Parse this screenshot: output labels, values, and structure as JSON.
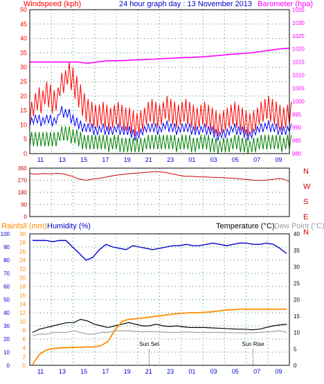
{
  "colors": {
    "wind": "#ff0000",
    "gust": "#0000ff",
    "avg": "#008000",
    "baro": "#ff00ff",
    "dir": "#cc0000",
    "rain": "#ff8c00",
    "humidity": "#0000cc",
    "temp": "#000000",
    "dew": "#a0a0a0",
    "title": "#0000cc",
    "grid": "#2e8b57"
  },
  "header": {
    "windspeed_label": "Windspeed (kph)",
    "graph_title": "24 hour graph day : 13 November 2013",
    "barometer_label": "Barometer (hpa)"
  },
  "mid_header": {
    "rainfall_label": "Rainfall (mm)",
    "humidity_label": "Humidity (%)",
    "temperature_label": "Temperature (°C)",
    "dewpoint_label": "Dew Point (°C)"
  },
  "chart_data": [
    {
      "type": "line",
      "x_ticks": [
        "11",
        "13",
        "15",
        "17",
        "19",
        "21",
        "23",
        "01",
        "03",
        "05",
        "07",
        "09"
      ],
      "left_axis": {
        "label": "Windspeed (kph)",
        "ylim": [
          0,
          50
        ],
        "ticks": [
          "0",
          "5",
          "10",
          "15",
          "20",
          "25",
          "30",
          "35",
          "40",
          "45",
          "50"
        ]
      },
      "right_axis": {
        "label": "Barometer (hpa)",
        "ylim": [
          980,
          1035
        ],
        "ticks": [
          "980",
          "985",
          "990",
          "995",
          "1000",
          "1005",
          "1010",
          "1015",
          "1020",
          "1025",
          "1030",
          "1035"
        ]
      },
      "series": [
        {
          "role": "wind_gust",
          "values": [
            14,
            17,
            19,
            18,
            21,
            20,
            18,
            19,
            24,
            25,
            28,
            26,
            23,
            20,
            17,
            15,
            14,
            13,
            13,
            14,
            13,
            12,
            13,
            14,
            13,
            12,
            12,
            11,
            10,
            11,
            12,
            14,
            15,
            14,
            13,
            14,
            16,
            15,
            14,
            13,
            14,
            15,
            14,
            13,
            12,
            13,
            14,
            13,
            12,
            11,
            10,
            11,
            12,
            13,
            14,
            13,
            12,
            11,
            10,
            11,
            12,
            14,
            15,
            16,
            15,
            14,
            13,
            12,
            13,
            14
          ]
        },
        {
          "role": "wind_speed",
          "values": [
            11,
            12,
            12,
            11,
            12,
            12,
            11,
            12,
            15,
            14,
            14,
            12,
            11,
            10,
            9,
            9,
            9,
            8,
            8,
            9,
            8,
            8,
            8,
            9,
            8,
            8,
            8,
            7,
            6,
            7,
            8,
            9,
            9,
            9,
            8,
            9,
            10,
            9,
            9,
            8,
            9,
            9,
            9,
            8,
            8,
            8,
            9,
            8,
            8,
            7,
            6,
            7,
            7,
            8,
            9,
            8,
            8,
            7,
            6,
            7,
            8,
            9,
            9,
            10,
            9,
            9,
            8,
            8,
            8,
            9
          ]
        },
        {
          "role": "wind_average",
          "values": [
            5,
            5,
            5,
            5,
            5,
            5,
            5,
            5,
            7,
            7,
            7,
            6,
            6,
            5,
            4,
            4,
            4,
            4,
            4,
            4,
            4,
            3,
            4,
            4,
            3,
            3,
            3,
            3,
            3,
            3,
            3,
            4,
            4,
            4,
            4,
            4,
            4,
            4,
            4,
            3,
            4,
            4,
            4,
            3,
            3,
            4,
            4,
            4,
            3,
            3,
            2,
            3,
            3,
            3,
            4,
            4,
            3,
            3,
            2,
            3,
            3,
            4,
            4,
            4,
            4,
            4,
            4,
            3,
            4,
            4
          ]
        },
        {
          "role": "barometer",
          "values": [
            1015,
            1015,
            1015,
            1015,
            1015,
            1015,
            1014.5,
            1015,
            1015.4,
            1015.5,
            1015.6,
            1015.8,
            1016,
            1016.1,
            1016.3,
            1016.5,
            1016.7,
            1016.8,
            1017,
            1017.3,
            1017.6,
            1018,
            1018.2,
            1018.5,
            1019,
            1019.5,
            1020,
            1020.3
          ]
        }
      ]
    },
    {
      "type": "line",
      "x_ticks": [
        "11",
        "13",
        "15",
        "17",
        "19",
        "21",
        "23",
        "01",
        "03",
        "05",
        "07",
        "09"
      ],
      "y_axis": {
        "ylim": [
          0,
          360
        ],
        "ticks": [
          "0",
          "90",
          "180",
          "270",
          "360"
        ]
      },
      "right_labels": [
        "N",
        "W",
        "S",
        "E",
        "N"
      ],
      "series": [
        {
          "role": "wind_direction",
          "values": [
            320,
            315,
            320,
            318,
            322,
            315,
            300,
            280,
            270,
            278,
            285,
            295,
            305,
            312,
            318,
            322,
            325,
            330,
            335,
            330,
            320,
            310,
            300,
            300,
            295,
            295,
            292,
            290,
            288,
            285,
            280,
            275,
            270,
            268,
            272,
            280,
            282,
            260
          ]
        }
      ]
    },
    {
      "type": "line",
      "x_ticks": [
        "11",
        "13",
        "15",
        "17",
        "19",
        "21",
        "23",
        "01",
        "03",
        "05",
        "07",
        "09"
      ],
      "left_axis_humidity": {
        "label": "Humidity (%)",
        "ylim": [
          0,
          100
        ],
        "ticks": [
          "0",
          "10",
          "20",
          "30",
          "40",
          "50",
          "60",
          "70",
          "80",
          "90",
          "100"
        ]
      },
      "left_axis_rain": {
        "label": "Rainfall (mm)",
        "ylim": [
          0,
          30
        ],
        "ticks": [
          "0",
          "2",
          "4",
          "6",
          "8",
          "10",
          "12",
          "14",
          "16",
          "18",
          "20",
          "22",
          "24",
          "26",
          "28",
          "30"
        ]
      },
      "right_axis": {
        "label": "Temperature (°C)",
        "ylim": [
          0,
          40
        ],
        "ticks": [
          "0",
          "5",
          "10",
          "15",
          "20",
          "25",
          "30",
          "35",
          "40"
        ]
      },
      "annotations": [
        "Sun Set",
        "Sun Rise"
      ],
      "series": [
        {
          "role": "humidity",
          "values": [
            95,
            95,
            95,
            94,
            95,
            95,
            90,
            85,
            80,
            82,
            88,
            92,
            90,
            89,
            88,
            91,
            90,
            89,
            88,
            89,
            90,
            91,
            91,
            92,
            91,
            91,
            92,
            93,
            92,
            91,
            92,
            93,
            93,
            92,
            92,
            93,
            92,
            89,
            85
          ]
        },
        {
          "role": "temperature",
          "values": [
            10,
            11,
            11.5,
            12,
            12.5,
            13,
            13,
            14,
            13.5,
            12.5,
            12,
            11.5,
            12,
            12.5,
            13,
            12.5,
            12,
            12,
            12.5,
            12,
            11.8,
            12,
            11.7,
            11.5,
            11.5,
            11.5,
            11.4,
            11.3,
            11.2,
            11.1,
            11,
            11,
            10.8,
            11,
            11.5,
            12,
            12.3,
            12.5
          ]
        },
        {
          "role": "dew_point",
          "values": [
            9,
            9.5,
            9.5,
            10,
            10,
            10,
            10.5,
            10,
            9.5,
            9.5,
            10,
            10,
            10.5,
            10.5,
            10.5,
            10.3,
            10.2,
            10.3,
            10.2,
            10.1,
            10,
            10,
            10.1,
            10.1,
            10,
            10,
            10,
            10,
            10,
            9.9,
            9.9,
            9.9,
            9.9,
            10,
            10.1,
            10.3,
            10.5,
            10
          ]
        },
        {
          "role": "rainfall",
          "values": [
            0.2,
            2.5,
            3.5,
            3.8,
            4,
            4,
            4.1,
            4.1,
            4.2,
            4.2,
            4.5,
            5.5,
            8,
            10,
            10.5,
            10.6,
            10.8,
            11,
            11.2,
            11.4,
            11.6,
            11.8,
            11.9,
            12,
            12,
            12.1,
            12.2,
            12.4,
            12.6,
            12.7,
            12.8,
            12.8,
            12.8,
            12.8,
            12.8,
            12.8,
            12.8,
            12.8
          ]
        }
      ]
    }
  ]
}
